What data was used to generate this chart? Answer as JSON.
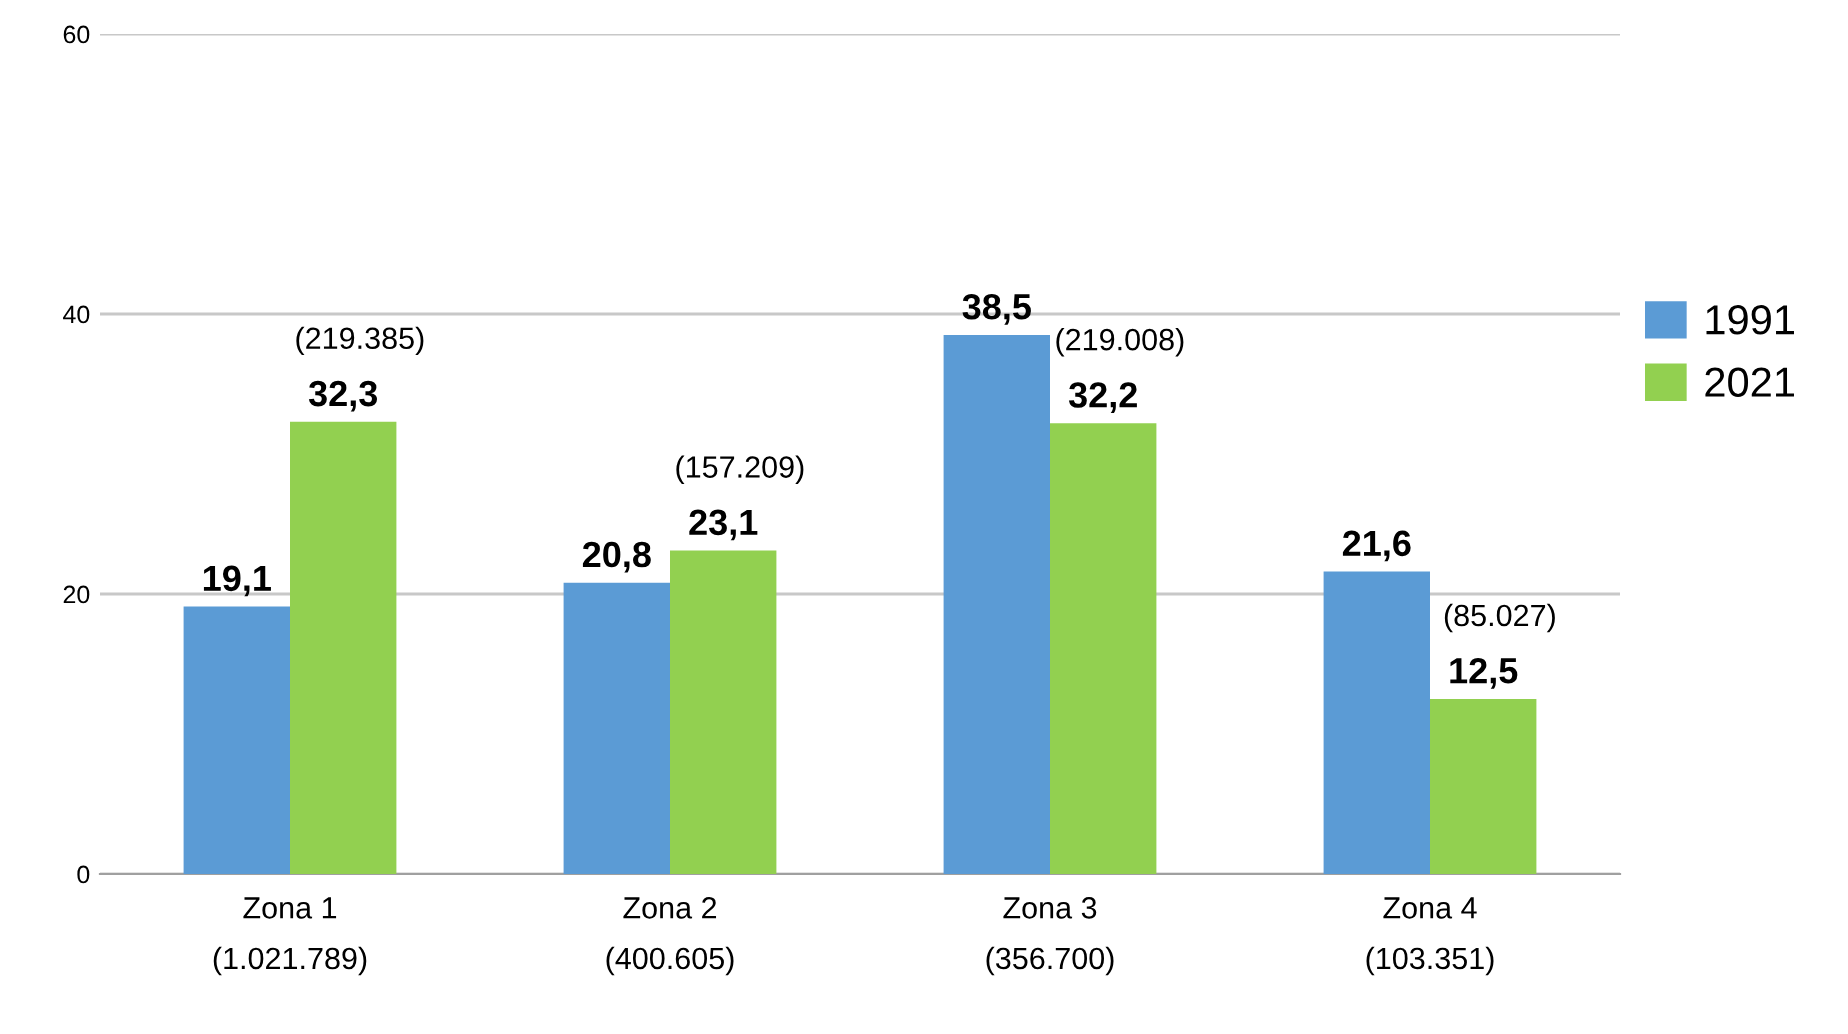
{
  "chart_data": {
    "type": "bar",
    "categories": [
      "Zona 1\n(1.021.789)",
      "Zona 2\n(400.605)",
      "Zona 3\n(356.700)",
      "Zona 4\n(103.351)"
    ],
    "series": [
      {
        "name": "1991",
        "color": "#5b9bd5",
        "values": [
          19.1,
          20.8,
          38.5,
          21.6
        ],
        "value_labels": [
          "19,1",
          "20,8",
          "38,5",
          "21,6"
        ]
      },
      {
        "name": "2021",
        "color": "#92d050",
        "values": [
          32.3,
          23.1,
          32.2,
          12.5
        ],
        "value_labels": [
          "32,3",
          "23,1",
          "32,2",
          "12,5"
        ]
      }
    ],
    "annotations": [
      {
        "text": "(219.385)",
        "x": "Zona 1\n(1.021.789)",
        "y": 32.3
      },
      {
        "text": "(157.209)",
        "x": "Zona 2\n(400.605)",
        "y": 23.1
      },
      {
        "text": "(219.008)",
        "x": "Zona 3\n(356.700)",
        "y": 32.2
      },
      {
        "text": "(85.027)",
        "x": "Zona 4\n(103.351)",
        "y": 12.5
      }
    ],
    "ylim": [
      0,
      60
    ],
    "yticks": [
      0,
      20,
      40,
      60
    ],
    "grid": "y",
    "legend": "right"
  }
}
